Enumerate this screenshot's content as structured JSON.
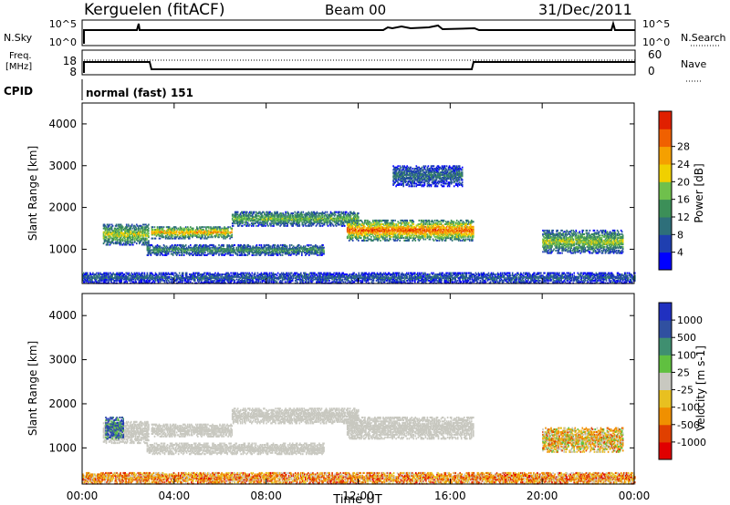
{
  "header": {
    "radar": "Kerguelen (fitACF)",
    "beam": "Beam 00",
    "date": "31/Dec/2011"
  },
  "nsky_panel": {
    "left_label": "N.Sky",
    "left_ticks": [
      "10^5",
      "10^0"
    ],
    "right_ticks": [
      "10^5",
      "10^0"
    ],
    "right_label": "N.Search"
  },
  "freq_panel": {
    "left_label_1": "Freq.",
    "left_label_2": "[MHz]",
    "left_ticks": [
      "18",
      "8"
    ],
    "right_ticks": [
      "60",
      "0"
    ],
    "right_label": "Nave"
  },
  "cpid": {
    "label": "CPID",
    "value": "normal (fast) 151"
  },
  "colors": {
    "power_scale": [
      "#0000ff",
      "#1f3fb0",
      "#2e6f7a",
      "#3c8f58",
      "#6fc04c",
      "#f0d000",
      "#f5a000",
      "#f06000",
      "#e02000"
    ],
    "velocity_scale": [
      "#2030c0",
      "#3050a0",
      "#3f8f70",
      "#60c040",
      "#c8c8c0",
      "#e8c020",
      "#f09000",
      "#e04000",
      "#e00000"
    ]
  },
  "chart_data": [
    {
      "type": "heatmap",
      "name": "power",
      "x_ticks": [
        "00:00",
        "04:00",
        "08:00",
        "12:00",
        "16:00",
        "20:00",
        "00:00"
      ],
      "xlim_hours": [
        0,
        24
      ],
      "ylabel": "Slant Range [km]",
      "ylim": [
        180,
        4500
      ],
      "y_ticks": [
        1000,
        2000,
        3000,
        4000
      ],
      "colorbar_label": "Power [dB]",
      "colorbar_ticks": [
        "4",
        "8",
        "12",
        "16",
        "20",
        "24",
        "28"
      ],
      "bands": [
        {
          "start": 0.9,
          "end": 2.9,
          "r0": 1100,
          "r1": 1600,
          "level": 0.6
        },
        {
          "start": 3.0,
          "end": 6.5,
          "r0": 1250,
          "r1": 1550,
          "level": 0.7
        },
        {
          "start": 6.5,
          "end": 12.0,
          "r0": 1550,
          "r1": 1900,
          "level": 0.5
        },
        {
          "start": 11.5,
          "end": 17.0,
          "r0": 1200,
          "r1": 1700,
          "level": 0.85
        },
        {
          "start": 2.8,
          "end": 10.5,
          "r0": 850,
          "r1": 1100,
          "level": 0.4
        },
        {
          "start": 20.0,
          "end": 23.5,
          "r0": 900,
          "r1": 1450,
          "level": 0.55
        },
        {
          "start": 13.5,
          "end": 16.5,
          "r0": 2500,
          "r1": 3000,
          "level": 0.3
        },
        {
          "start": 0.0,
          "end": 24.0,
          "r0": 180,
          "r1": 450,
          "level": 0.25
        }
      ]
    },
    {
      "type": "heatmap",
      "name": "velocity",
      "x_ticks": [
        "00:00",
        "04:00",
        "08:00",
        "12:00",
        "16:00",
        "20:00",
        "00:00"
      ],
      "xlabel": "Time UT",
      "xlim_hours": [
        0,
        24
      ],
      "ylabel": "Slant Range [km]",
      "ylim": [
        180,
        4500
      ],
      "y_ticks": [
        1000,
        2000,
        3000,
        4000
      ],
      "colorbar_label": "Velocity [m s-1]",
      "colorbar_ticks": [
        "1000",
        "500",
        "100",
        "25",
        "-25",
        "-100",
        "-500",
        "-1000"
      ],
      "bands": [
        {
          "start": 0.9,
          "end": 2.9,
          "r0": 1100,
          "r1": 1600,
          "level": 0.5
        },
        {
          "start": 3.0,
          "end": 6.5,
          "r0": 1250,
          "r1": 1550,
          "level": 0.5
        },
        {
          "start": 6.5,
          "end": 12.0,
          "r0": 1550,
          "r1": 1900,
          "level": 0.5
        },
        {
          "start": 11.5,
          "end": 17.0,
          "r0": 1200,
          "r1": 1700,
          "level": 0.5
        },
        {
          "start": 2.8,
          "end": 10.5,
          "r0": 850,
          "r1": 1100,
          "level": 0.5
        },
        {
          "start": 20.0,
          "end": 23.5,
          "r0": 900,
          "r1": 1450,
          "level": 0.6
        },
        {
          "start": 1.0,
          "end": 1.8,
          "r0": 1200,
          "r1": 1700,
          "level": 0.2
        },
        {
          "start": 0.0,
          "end": 24.0,
          "r0": 180,
          "r1": 450,
          "level": 0.7
        }
      ]
    }
  ]
}
